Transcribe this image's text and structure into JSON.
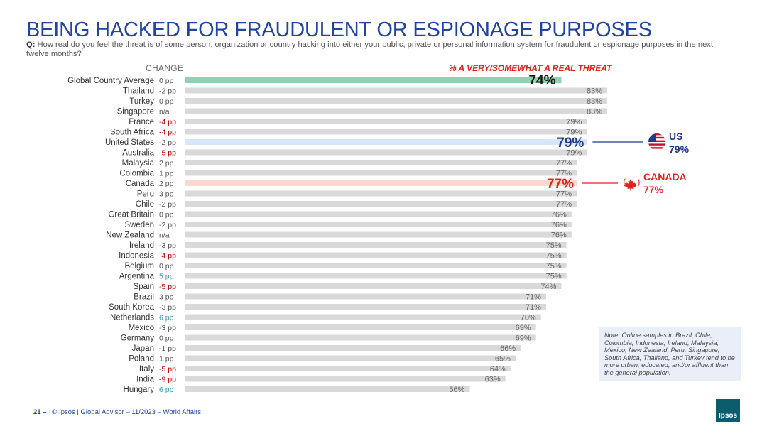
{
  "title": "BEING HACKED FOR FRAUDULENT OR ESPIONAGE PURPOSES",
  "question": {
    "prefix": "Q:",
    "text": "How real do you feel the threat is of some person, organization or country hacking into either your public, private or personal information system for fraudulent or espionage purposes in the next twelve months?"
  },
  "headers": {
    "change": "CHANGE",
    "threat": "% A VERY/SOMEWHAT A REAL THREAT"
  },
  "callouts": {
    "us": {
      "name": "US",
      "value": "79%",
      "icon": "us-flag-icon"
    },
    "canada": {
      "name": "CANADA",
      "value": "77%",
      "icon": "maple-leaf-icon"
    }
  },
  "note": "Note: Online samples in Brazil, Chile, Colombia, Indonesia, Ireland, Malaysia, Mexico, New Zealand, Peru, Singapore, South Africa, Thailand, and Turkey tend to be more urban, educated, and/or affluent than the general population.",
  "footer": {
    "page": "21 –",
    "text": "© Ipsos | Global Advisor – 11/2023 – World Affairs"
  },
  "logo": "Ipsos",
  "colors": {
    "title": "#2044a0",
    "bar": "#d9d9da",
    "global_bar": "#8fd1b0",
    "us_bar": "#d7e6fb",
    "canada_bar": "#fbd9d1",
    "negative_change": "#c00000",
    "positive_change": "#2a9fb0",
    "neutral_change": "#555555",
    "us_highlight": "#1f3a8a",
    "canada_highlight": "#e2231a"
  },
  "chart_data": {
    "type": "bar",
    "orientation": "horizontal",
    "xlim": [
      0,
      100
    ],
    "categories": [
      "Global Country Average",
      "Thailand",
      "Turkey",
      "Singapore",
      "France",
      "South Africa",
      "United States",
      "Australia",
      "Malaysia",
      "Colombia",
      "Canada",
      "Peru",
      "Chile",
      "Great Britain",
      "Sweden",
      "New Zealand",
      "Ireland",
      "Indonesia",
      "Belgium",
      "Argentina",
      "Spain",
      "Brazil",
      "South Korea",
      "Netherlands",
      "Mexico",
      "Germany",
      "Japan",
      "Poland",
      "Italy",
      "India",
      "Hungary"
    ],
    "values": [
      74,
      83,
      83,
      83,
      79,
      79,
      79,
      79,
      77,
      77,
      77,
      77,
      77,
      76,
      76,
      76,
      75,
      75,
      75,
      75,
      74,
      71,
      71,
      70,
      69,
      69,
      66,
      65,
      64,
      63,
      56
    ],
    "value_labels": [
      "74%",
      "83%",
      "83%",
      "83%",
      "79%",
      "79%",
      "79%",
      "79%",
      "77%",
      "77%",
      "77%",
      "77%",
      "77%",
      "76%",
      "76%",
      "76%",
      "75%",
      "75%",
      "75%",
      "75%",
      "74%",
      "71%",
      "71%",
      "70%",
      "69%",
      "69%",
      "66%",
      "65%",
      "64%",
      "63%",
      "56%"
    ],
    "change_labels": [
      "0 pp",
      "-2 pp",
      "0 pp",
      "n/a",
      "-4 pp",
      "-4 pp",
      "-2 pp",
      "-5 pp",
      "2 pp",
      "1 pp",
      "2 pp",
      "3 pp",
      "-2 pp",
      "0 pp",
      "-2 pp",
      "n/a",
      "-3 pp",
      "-4 pp",
      "0 pp",
      "5 pp",
      "-5 pp",
      "3 pp",
      "-3 pp",
      "6 pp",
      "-3 pp",
      "0 pp",
      "-1 pp",
      "1 pp",
      "-5 pp",
      "-9 pp",
      "6 pp"
    ],
    "highlight": {
      "Global Country Average": "global",
      "United States": "us",
      "Canada": "canada"
    }
  }
}
